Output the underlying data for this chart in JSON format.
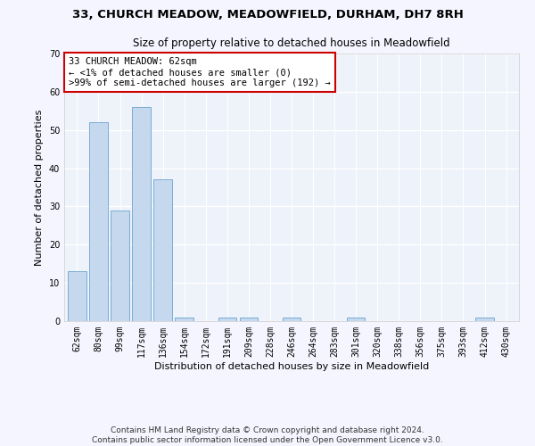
{
  "title_line1": "33, CHURCH MEADOW, MEADOWFIELD, DURHAM, DH7 8RH",
  "title_line2": "Size of property relative to detached houses in Meadowfield",
  "xlabel": "Distribution of detached houses by size in Meadowfield",
  "ylabel": "Number of detached properties",
  "bar_color": "#c5d8ee",
  "bar_edge_color": "#7aadd4",
  "categories": [
    "62sqm",
    "80sqm",
    "99sqm",
    "117sqm",
    "136sqm",
    "154sqm",
    "172sqm",
    "191sqm",
    "209sqm",
    "228sqm",
    "246sqm",
    "264sqm",
    "283sqm",
    "301sqm",
    "320sqm",
    "338sqm",
    "356sqm",
    "375sqm",
    "393sqm",
    "412sqm",
    "430sqm"
  ],
  "values": [
    13,
    52,
    29,
    56,
    37,
    1,
    0,
    1,
    1,
    0,
    1,
    0,
    0,
    1,
    0,
    0,
    0,
    0,
    0,
    1,
    0
  ],
  "ylim": [
    0,
    70
  ],
  "yticks": [
    0,
    10,
    20,
    30,
    40,
    50,
    60,
    70
  ],
  "annotation_line1": "33 CHURCH MEADOW: 62sqm",
  "annotation_line2": "← <1% of detached houses are smaller (0)",
  "annotation_line3": ">99% of semi-detached houses are larger (192) →",
  "annotation_box_color": "#ffffff",
  "annotation_box_edge_color": "#cc0000",
  "footer_line1": "Contains HM Land Registry data © Crown copyright and database right 2024.",
  "footer_line2": "Contains public sector information licensed under the Open Government Licence v3.0.",
  "background_color": "#eef2fa",
  "grid_color": "#ffffff",
  "title_fontsize": 9.5,
  "subtitle_fontsize": 8.5,
  "axis_label_fontsize": 8,
  "tick_fontsize": 7,
  "annotation_fontsize": 7.5,
  "footer_fontsize": 6.5
}
